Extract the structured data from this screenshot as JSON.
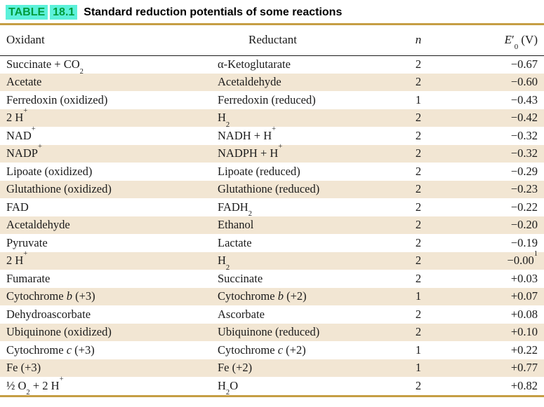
{
  "title": {
    "table_word": "TABLE",
    "table_number": "18.1",
    "caption": "Standard reduction potentials of some reactions"
  },
  "colors": {
    "title_green": "#009c3c",
    "title_highlight": "#5cf1da",
    "gold_rule": "#c59e44",
    "row_stripe": "#f2e6d3",
    "text_color": "#1b1b1b"
  },
  "headers": {
    "oxidant": [
      {
        "t": "Oxidant"
      }
    ],
    "reductant": [
      {
        "t": "Reductant"
      }
    ],
    "n": [
      {
        "t": "n",
        "i": true
      }
    ],
    "e0": [
      {
        "t": "E",
        "i": true
      },
      {
        "t": "′"
      },
      {
        "t": "0",
        "sub": true
      },
      {
        "t": " (V)"
      }
    ]
  },
  "rows": [
    {
      "oxidant": [
        {
          "t": "Succinate + CO"
        },
        {
          "t": "2",
          "sub": true
        }
      ],
      "reductant": [
        {
          "t": "α-Ketoglutarate"
        }
      ],
      "n": "2",
      "e0": [
        {
          "t": "−0.67"
        }
      ]
    },
    {
      "oxidant": [
        {
          "t": "Acetate"
        }
      ],
      "reductant": [
        {
          "t": "Acetaldehyde"
        }
      ],
      "n": "2",
      "e0": [
        {
          "t": "−0.60"
        }
      ]
    },
    {
      "oxidant": [
        {
          "t": "Ferredoxin (oxidized)"
        }
      ],
      "reductant": [
        {
          "t": "Ferredoxin (reduced)"
        }
      ],
      "n": "1",
      "e0": [
        {
          "t": "−0.43"
        }
      ]
    },
    {
      "oxidant": [
        {
          "t": "2 H"
        },
        {
          "t": "+",
          "sup": true
        }
      ],
      "reductant": [
        {
          "t": "H"
        },
        {
          "t": "2",
          "sub": true
        }
      ],
      "n": "2",
      "e0": [
        {
          "t": "−0.42"
        }
      ]
    },
    {
      "oxidant": [
        {
          "t": "NAD"
        },
        {
          "t": "+",
          "sup": true
        }
      ],
      "reductant": [
        {
          "t": "NADH + H"
        },
        {
          "t": "+",
          "sup": true
        }
      ],
      "n": "2",
      "e0": [
        {
          "t": "−0.32"
        }
      ]
    },
    {
      "oxidant": [
        {
          "t": "NADP"
        },
        {
          "t": "+",
          "sup": true
        }
      ],
      "reductant": [
        {
          "t": "NADPH + H"
        },
        {
          "t": "+",
          "sup": true
        }
      ],
      "n": "2",
      "e0": [
        {
          "t": "−0.32"
        }
      ]
    },
    {
      "oxidant": [
        {
          "t": "Lipoate (oxidized)"
        }
      ],
      "reductant": [
        {
          "t": "Lipoate (reduced)"
        }
      ],
      "n": "2",
      "e0": [
        {
          "t": "−0.29"
        }
      ]
    },
    {
      "oxidant": [
        {
          "t": "Glutathione (oxidized)"
        }
      ],
      "reductant": [
        {
          "t": "Glutathione (reduced)"
        }
      ],
      "n": "2",
      "e0": [
        {
          "t": "−0.23"
        }
      ]
    },
    {
      "oxidant": [
        {
          "t": "FAD"
        }
      ],
      "reductant": [
        {
          "t": "FADH"
        },
        {
          "t": "2",
          "sub": true
        }
      ],
      "n": "2",
      "e0": [
        {
          "t": "−0.22"
        }
      ]
    },
    {
      "oxidant": [
        {
          "t": "Acetaldehyde"
        }
      ],
      "reductant": [
        {
          "t": "Ethanol"
        }
      ],
      "n": "2",
      "e0": [
        {
          "t": "−0.20"
        }
      ]
    },
    {
      "oxidant": [
        {
          "t": "Pyruvate"
        }
      ],
      "reductant": [
        {
          "t": "Lactate"
        }
      ],
      "n": "2",
      "e0": [
        {
          "t": "−0.19"
        }
      ]
    },
    {
      "oxidant": [
        {
          "t": "2 H"
        },
        {
          "t": "+",
          "sup": true
        }
      ],
      "reductant": [
        {
          "t": "H"
        },
        {
          "t": "2",
          "sub": true
        }
      ],
      "n": "2",
      "e0": [
        {
          "t": "−0.00"
        },
        {
          "t": "1",
          "sup": true
        }
      ]
    },
    {
      "oxidant": [
        {
          "t": "Fumarate"
        }
      ],
      "reductant": [
        {
          "t": "Succinate"
        }
      ],
      "n": "2",
      "e0": [
        {
          "t": "+0.03"
        }
      ]
    },
    {
      "oxidant": [
        {
          "t": "Cytochrome "
        },
        {
          "t": "b",
          "i": true
        },
        {
          "t": " (+3)"
        }
      ],
      "reductant": [
        {
          "t": "Cytochrome "
        },
        {
          "t": "b",
          "i": true
        },
        {
          "t": " (+2)"
        }
      ],
      "n": "1",
      "e0": [
        {
          "t": "+0.07"
        }
      ]
    },
    {
      "oxidant": [
        {
          "t": "Dehydroascorbate"
        }
      ],
      "reductant": [
        {
          "t": "Ascorbate"
        }
      ],
      "n": "2",
      "e0": [
        {
          "t": "+0.08"
        }
      ]
    },
    {
      "oxidant": [
        {
          "t": "Ubiquinone (oxidized)"
        }
      ],
      "reductant": [
        {
          "t": "Ubiquinone (reduced)"
        }
      ],
      "n": "2",
      "e0": [
        {
          "t": "+0.10"
        }
      ]
    },
    {
      "oxidant": [
        {
          "t": "Cytochrome "
        },
        {
          "t": "c",
          "i": true
        },
        {
          "t": " (+3)"
        }
      ],
      "reductant": [
        {
          "t": "Cytochrome "
        },
        {
          "t": "c",
          "i": true
        },
        {
          "t": " (+2)"
        }
      ],
      "n": "1",
      "e0": [
        {
          "t": "+0.22"
        }
      ]
    },
    {
      "oxidant": [
        {
          "t": "Fe (+3)"
        }
      ],
      "reductant": [
        {
          "t": "Fe (+2)"
        }
      ],
      "n": "1",
      "e0": [
        {
          "t": "+0.77"
        }
      ]
    },
    {
      "oxidant": [
        {
          "t": "½ O"
        },
        {
          "t": "2",
          "sub": true
        },
        {
          "t": " + 2 H"
        },
        {
          "t": "+",
          "sup": true
        }
      ],
      "reductant": [
        {
          "t": "H"
        },
        {
          "t": "2",
          "sub": true
        },
        {
          "t": "O"
        }
      ],
      "n": "2",
      "e0": [
        {
          "t": "+0.82"
        }
      ]
    }
  ]
}
